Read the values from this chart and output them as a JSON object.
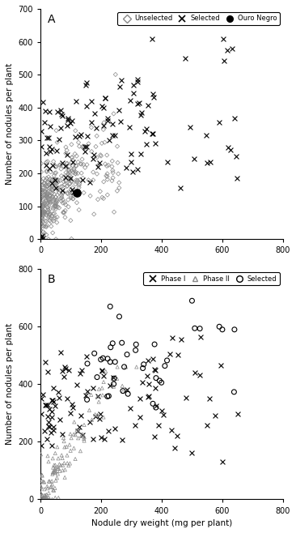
{
  "panel_A": {
    "label": "A",
    "ylim": [
      0,
      700
    ],
    "yticks": [
      0,
      100,
      200,
      300,
      400,
      500,
      600,
      700
    ],
    "xlim": [
      0,
      800
    ],
    "xticks": [
      0,
      200,
      400,
      600,
      800
    ],
    "ylabel": "Number of nodules per plant",
    "xlabel": "",
    "ouro_negro_x": 120,
    "ouro_negro_y": 140
  },
  "panel_B": {
    "label": "B",
    "ylim": [
      0,
      800
    ],
    "yticks": [
      0,
      200,
      400,
      600,
      800
    ],
    "xlim": [
      0,
      800
    ],
    "xticks": [
      0,
      200,
      400,
      600,
      800
    ],
    "ylabel": "Number of nodules per plant",
    "xlabel": "Nodule dry weight (mg per plant)"
  },
  "unselected_color": "#888888",
  "selected_color": "#000000",
  "ouro_negro_color": "#000000",
  "phase1_color": "#000000",
  "phase2_color": "#888888",
  "selected_B_color": "#000000",
  "bg_color": "#ffffff"
}
